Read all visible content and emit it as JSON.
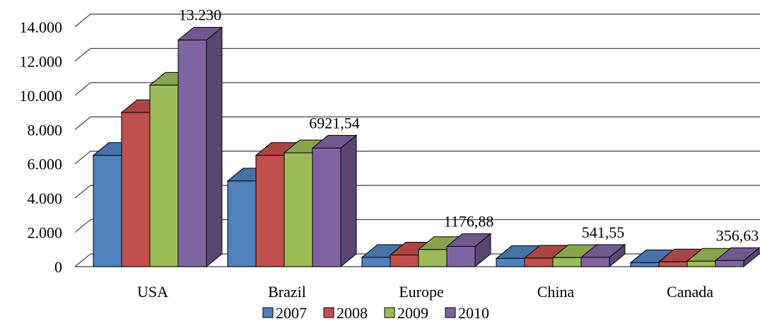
{
  "chart_data": {
    "type": "bar",
    "title": "",
    "xlabel": "",
    "ylabel": "",
    "categories": [
      "USA",
      "Brazil",
      "Europe",
      "China",
      "Canada"
    ],
    "series": [
      {
        "name": "2007",
        "color": "#4F81BD",
        "values": [
          6500,
          5000,
          540,
          480,
          230
        ]
      },
      {
        "name": "2008",
        "color": "#C0504D",
        "values": [
          9000,
          6500,
          680,
          500,
          280
        ]
      },
      {
        "name": "2009",
        "color": "#9BBB59",
        "values": [
          10600,
          6650,
          1000,
          530,
          320
        ]
      },
      {
        "name": "2010",
        "color": "#8064A2",
        "values": [
          13230,
          6921.54,
          1176.88,
          541.55,
          356.63
        ]
      }
    ],
    "y_ticks": [
      {
        "value": 0,
        "label": "0"
      },
      {
        "value": 2000,
        "label": "2.000"
      },
      {
        "value": 4000,
        "label": "4.000"
      },
      {
        "value": 6000,
        "label": "6.000"
      },
      {
        "value": 8000,
        "label": "8.000"
      },
      {
        "value": 10000,
        "label": "10.000"
      },
      {
        "value": 12000,
        "label": "12.000"
      },
      {
        "value": 14000,
        "label": "14.000"
      }
    ],
    "ylim": [
      0,
      14000
    ],
    "data_labels": [
      {
        "category": "USA",
        "series": "2010",
        "text": "13.230"
      },
      {
        "category": "Brazil",
        "series": "2010",
        "text": "6921,54"
      },
      {
        "category": "Europe",
        "series": "2010",
        "text": "1176,88"
      },
      {
        "category": "China",
        "series": "2010",
        "text": "541,55"
      },
      {
        "category": "Canada",
        "series": "2010",
        "text": "356,63"
      }
    ],
    "grid": true,
    "legend_position": "bottom"
  }
}
